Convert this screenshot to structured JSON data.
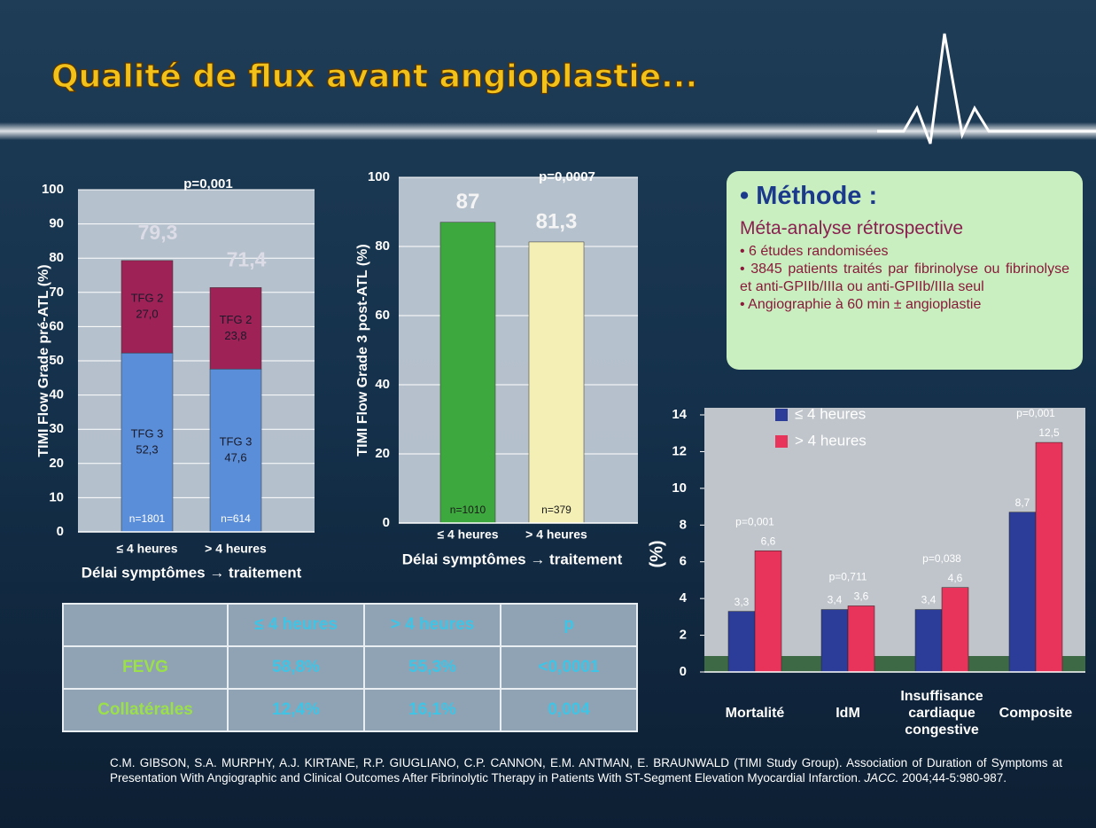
{
  "title": "Qualité de flux avant angioplastie...",
  "chart_data": [
    {
      "type": "bar",
      "stacked": true,
      "categories": [
        "≤ 4 heures",
        "> 4 heures"
      ],
      "series": [
        {
          "name": "TFG 3",
          "color": "#5b8ed8",
          "values": [
            52.3,
            47.6
          ],
          "value_labels": [
            "52,3",
            "47,6"
          ]
        },
        {
          "name": "TFG 2",
          "color": "#9e2256",
          "values": [
            27.0,
            23.8
          ],
          "value_labels": [
            "27,0",
            "23,8"
          ]
        }
      ],
      "totals": [
        79.3,
        71.4
      ],
      "total_labels": [
        "79,3",
        "71,4"
      ],
      "n_labels": [
        "n=1801",
        "n=614"
      ],
      "annotation": "p=0,001",
      "y_label": "TIMI Flow Grade pré-ATL (%)",
      "x_label": "Délai symptômes → traitement",
      "ylim": [
        0,
        100
      ],
      "yticks": [
        0,
        10,
        20,
        30,
        40,
        50,
        60,
        70,
        80,
        90,
        100
      ],
      "grid": true
    },
    {
      "type": "bar",
      "categories": [
        "≤ 4 heures",
        "> 4 heures"
      ],
      "values": [
        87,
        81.3
      ],
      "value_labels": [
        "87",
        "81,3"
      ],
      "colors": [
        "#3da83d",
        "#f4efb4"
      ],
      "n_labels": [
        "n=1010",
        "n=379"
      ],
      "annotation": "p=0,0007",
      "y_label": "TIMI Flow Grade 3 post-ATL (%)",
      "x_label": "Délai symptômes → traitement",
      "ylim": [
        0,
        100
      ],
      "yticks": [
        0,
        20,
        40,
        60,
        80,
        100
      ],
      "grid": true
    },
    {
      "type": "bar",
      "categories": [
        "Mortalité",
        "IdM",
        "Insuffisance cardiaque congestive",
        "Composite"
      ],
      "series": [
        {
          "name": "≤ 4 heures",
          "color": "#2b3d98",
          "values": [
            3.3,
            3.4,
            3.4,
            8.7
          ],
          "value_labels": [
            "3,3",
            "3,4",
            "3,4",
            "8,7"
          ]
        },
        {
          "name": "> 4 heures",
          "color": "#e8335a",
          "values": [
            6.6,
            3.6,
            4.6,
            12.5
          ],
          "value_labels": [
            "6,6",
            "3,6",
            "4,6",
            "12,5"
          ]
        }
      ],
      "p_labels": [
        "p=0,001",
        "p=0,711",
        "p=0,038",
        "p=0,001"
      ],
      "y_label": "(%)",
      "ylim": [
        0,
        14
      ],
      "yticks": [
        0,
        2,
        4,
        6,
        8,
        10,
        12,
        14
      ],
      "grid": false,
      "legend": "top-left"
    }
  ],
  "method": {
    "heading": "• Méthode :",
    "subheading": "Méta-analyse rétrospective",
    "items": [
      "• 6 études randomisées",
      "• 3845 patients traités par fibrinolyse ou fibrinolyse et anti-GPIIb/IIIa ou anti-GPIIb/IIIa seul",
      "• Angiographie à 60 min ± angioplastie"
    ]
  },
  "table": {
    "header": [
      "≤ 4 heures",
      "> 4 heures",
      "p"
    ],
    "rows": [
      [
        "FEVG",
        "58,8%",
        "55,3%",
        "<0,0001"
      ],
      [
        "Collatérales",
        "12,4%",
        "16,1%",
        "0,004"
      ]
    ]
  },
  "citation": [
    "C.M. GIBSON, S.A. MURPHY, A.J. KIRTANE, R.P. GIUGLIANO, C.P. CANNON, E.M. ANTMAN, E. BRAUNWALD (TIMI Study Group). Association of Duration of Symptoms at Presentation With Angiographic and Clinical Outcomes After Fibrinolytic Therapy in Patients With ST-Segment Elevation Myocardial Infarction. ",
    "JACC.",
    " 2004;44-5:980-987."
  ]
}
